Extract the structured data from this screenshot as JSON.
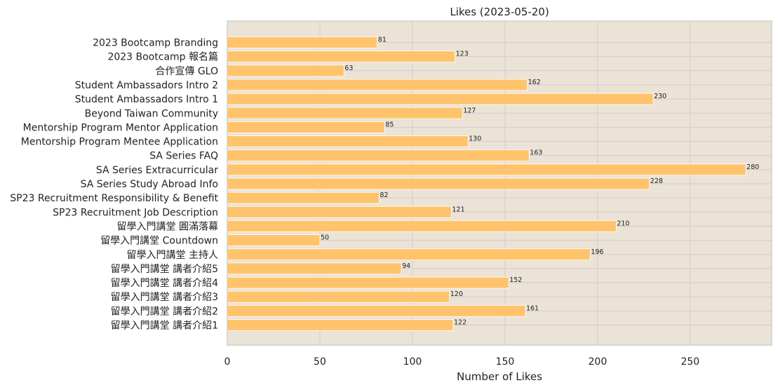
{
  "chart_data": {
    "type": "bar",
    "orientation": "horizontal",
    "title": "Likes (2023-05-20)",
    "xlabel": "Number of Likes",
    "ylabel": "",
    "xlim": [
      0,
      294
    ],
    "xticks": [
      0,
      50,
      100,
      150,
      200,
      250
    ],
    "grid": true,
    "colors": {
      "bar": "#ffc46b",
      "plot_bg": "#ebe3d6",
      "grid": "#d2cbd0"
    },
    "categories": [
      "2023 Bootcamp Branding",
      "2023 Bootcamp 報名篇",
      "合作宣傳 GLO",
      "Student Ambassadors Intro 2",
      "Student Ambassadors Intro 1",
      "Beyond Taiwan Community",
      "Mentorship Program Mentor Application",
      "Mentorship Program Mentee Application",
      "SA Series FAQ",
      "SA Series Extracurricular",
      "SA Series Study Abroad Info",
      "SP23 Recruitment Responsibility & Benefit",
      "SP23 Recruitment Job Description",
      "留學入門講堂 圓滿落幕",
      "留學入門講堂 Countdown",
      "留學入門講堂 主持人",
      "留學入門講堂 講者介紹5",
      "留學入門講堂 講者介紹4",
      "留學入門講堂 講者介紹3",
      "留學入門講堂 講者介紹2",
      "留學入門講堂 講者介紹1"
    ],
    "values": [
      81,
      123,
      63,
      162,
      230,
      127,
      85,
      130,
      163,
      280,
      228,
      82,
      121,
      210,
      50,
      196,
      94,
      152,
      120,
      161,
      122
    ]
  }
}
